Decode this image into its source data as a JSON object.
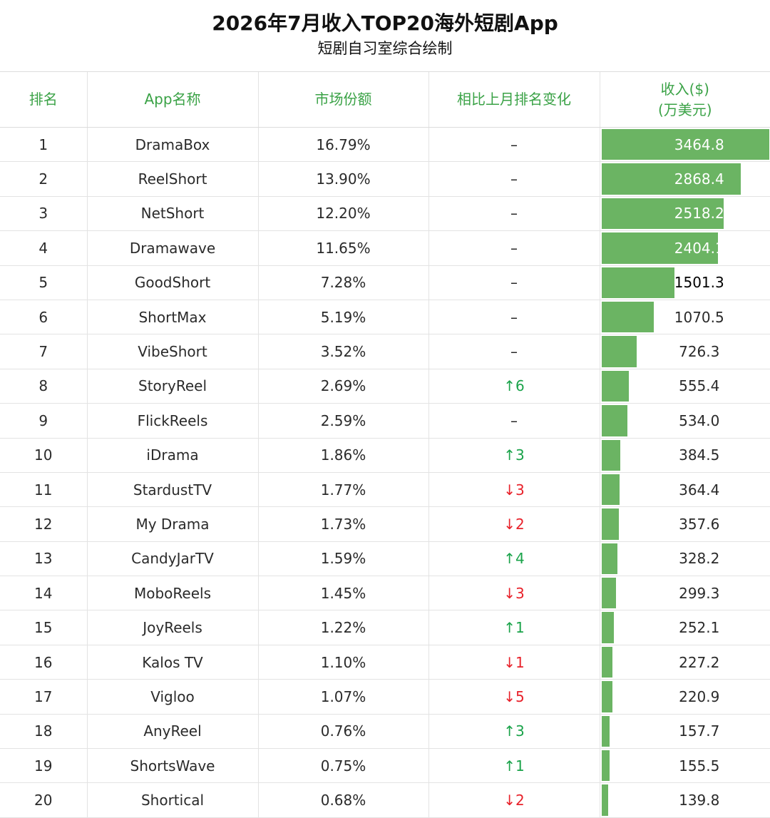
{
  "header": {
    "title": "2026年7月收入TOP20海外短剧App",
    "subtitle": "短剧自习室综合绘制"
  },
  "columns": [
    "排名",
    "App名称",
    "市场份额",
    "相比上月排名变化",
    "收入($)",
    "(万美元)"
  ],
  "colors": {
    "bar": "#6bb463",
    "header_text": "#3aa246",
    "up": "#1aa34a",
    "down": "#e8212a"
  },
  "chart_data": {
    "type": "table",
    "xmax": 3464.8,
    "rows": [
      {
        "rank": "1",
        "app": "DramaBox",
        "share": "16.79%",
        "change": "–",
        "dir": "flat",
        "revenue": 3464.8,
        "revenue_label": "3464.8"
      },
      {
        "rank": "2",
        "app": "ReelShort",
        "share": "13.90%",
        "change": "–",
        "dir": "flat",
        "revenue": 2868.4,
        "revenue_label": "2868.4"
      },
      {
        "rank": "3",
        "app": "NetShort",
        "share": "12.20%",
        "change": "–",
        "dir": "flat",
        "revenue": 2518.2,
        "revenue_label": "2518.2"
      },
      {
        "rank": "4",
        "app": "Dramawave",
        "share": "11.65%",
        "change": "–",
        "dir": "flat",
        "revenue": 2404.1,
        "revenue_label": "2404.1"
      },
      {
        "rank": "5",
        "app": "GoodShort",
        "share": "7.28%",
        "change": "–",
        "dir": "flat",
        "revenue": 1501.3,
        "revenue_label": "1501.3"
      },
      {
        "rank": "6",
        "app": "ShortMax",
        "share": "5.19%",
        "change": "–",
        "dir": "flat",
        "revenue": 1070.5,
        "revenue_label": "1070.5"
      },
      {
        "rank": "7",
        "app": "VibeShort",
        "share": "3.52%",
        "change": "–",
        "dir": "flat",
        "revenue": 726.3,
        "revenue_label": "726.3"
      },
      {
        "rank": "8",
        "app": "StoryReel",
        "share": "2.69%",
        "change": "↑6",
        "dir": "up",
        "revenue": 555.4,
        "revenue_label": "555.4"
      },
      {
        "rank": "9",
        "app": "FlickReels",
        "share": "2.59%",
        "change": "–",
        "dir": "flat",
        "revenue": 534.0,
        "revenue_label": "534.0"
      },
      {
        "rank": "10",
        "app": "iDrama",
        "share": "1.86%",
        "change": "↑3",
        "dir": "up",
        "revenue": 384.5,
        "revenue_label": "384.5"
      },
      {
        "rank": "11",
        "app": "StardustTV",
        "share": "1.77%",
        "change": "↓3",
        "dir": "down",
        "revenue": 364.4,
        "revenue_label": "364.4"
      },
      {
        "rank": "12",
        "app": "My Drama",
        "share": "1.73%",
        "change": "↓2",
        "dir": "down",
        "revenue": 357.6,
        "revenue_label": "357.6"
      },
      {
        "rank": "13",
        "app": "CandyJarTV",
        "share": "1.59%",
        "change": "↑4",
        "dir": "up",
        "revenue": 328.2,
        "revenue_label": "328.2"
      },
      {
        "rank": "14",
        "app": "MoboReels",
        "share": "1.45%",
        "change": "↓3",
        "dir": "down",
        "revenue": 299.3,
        "revenue_label": "299.3"
      },
      {
        "rank": "15",
        "app": "JoyReels",
        "share": "1.22%",
        "change": "↑1",
        "dir": "up",
        "revenue": 252.1,
        "revenue_label": "252.1"
      },
      {
        "rank": "16",
        "app": "Kalos TV",
        "share": "1.10%",
        "change": "↓1",
        "dir": "down",
        "revenue": 227.2,
        "revenue_label": "227.2"
      },
      {
        "rank": "17",
        "app": "Vigloo",
        "share": "1.07%",
        "change": "↓5",
        "dir": "down",
        "revenue": 220.9,
        "revenue_label": "220.9"
      },
      {
        "rank": "18",
        "app": "AnyReel",
        "share": "0.76%",
        "change": "↑3",
        "dir": "up",
        "revenue": 157.7,
        "revenue_label": "157.7"
      },
      {
        "rank": "19",
        "app": "ShortsWave",
        "share": "0.75%",
        "change": "↑1",
        "dir": "up",
        "revenue": 155.5,
        "revenue_label": "155.5"
      },
      {
        "rank": "20",
        "app": "Shortical",
        "share": "0.68%",
        "change": "↓2",
        "dir": "down",
        "revenue": 139.8,
        "revenue_label": "139.8"
      }
    ]
  }
}
